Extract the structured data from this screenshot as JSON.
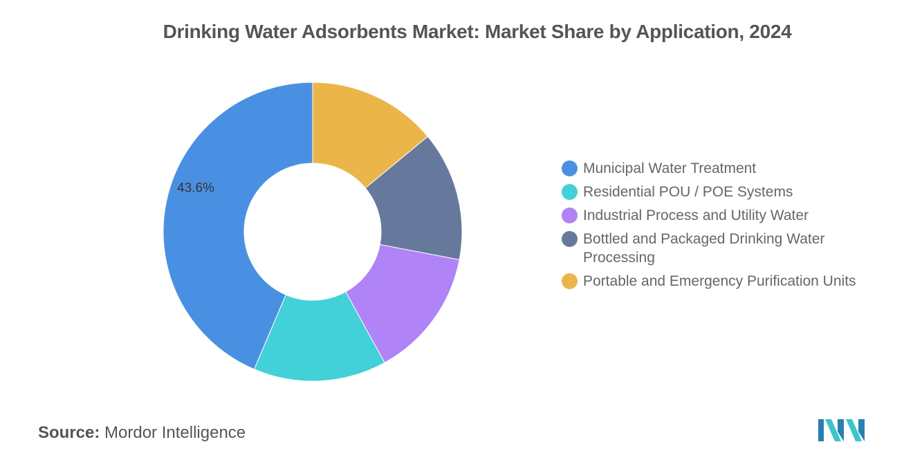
{
  "chart_data": {
    "type": "pie",
    "title": "Drinking Water Adsorbents Market: Market Share by Application, 2024",
    "categories": [
      "Municipal Water Treatment",
      "Residential POU / POE Systems",
      "Industrial Process and Utility Water",
      "Bottled and Packaged Drinking Water Processing",
      "Portable and Emergency Purification Units"
    ],
    "values": [
      43.6,
      14.4,
      14.0,
      14.0,
      14.0
    ],
    "colors": [
      "#4a90e2",
      "#42d0d9",
      "#b083f7",
      "#66799d",
      "#ebb54a"
    ],
    "data_labels": [
      "43.6%",
      "",
      "",
      "",
      ""
    ],
    "legend_position": "right",
    "donut": true
  },
  "source": {
    "label": "Source:",
    "value": "Mordor Intelligence"
  },
  "logo": {
    "name": "mordor-intelligence-logo",
    "colors": [
      "#2a7fb0",
      "#3ec5c9"
    ]
  }
}
